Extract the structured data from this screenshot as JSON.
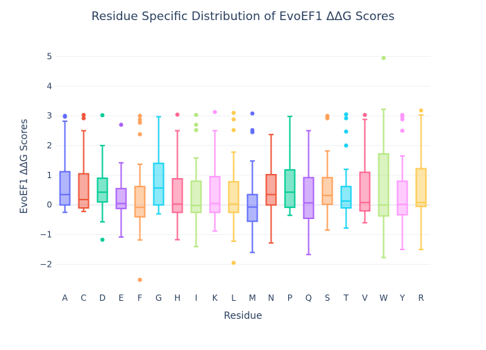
{
  "chart_data": {
    "type": "box",
    "title": "Residue Specific Distribution of EvoEF1 ΔΔG Scores",
    "xlabel": "Residue",
    "ylabel": "EvoEF1 ΔΔG Scores",
    "ylim": [
      -2.9,
      5.5
    ],
    "yticks": [
      -2,
      -1,
      0,
      1,
      2,
      3,
      4,
      5
    ],
    "ytick_labels": [
      "−2",
      "−1",
      "0",
      "1",
      "2",
      "3",
      "4",
      "5"
    ],
    "grid": true,
    "legend": "none",
    "series": [
      {
        "category": "A",
        "color": "#636efa",
        "min": -0.25,
        "q1": 0.0,
        "median": 0.35,
        "q3": 1.12,
        "max": 2.82,
        "outliers": [
          2.97,
          3.0
        ]
      },
      {
        "category": "C",
        "color": "#ef553b",
        "min": -0.22,
        "q1": -0.1,
        "median": 0.18,
        "q3": 1.05,
        "max": 2.5,
        "outliers": [
          2.92,
          3.03
        ]
      },
      {
        "category": "D",
        "color": "#00cc96",
        "min": -0.57,
        "q1": 0.1,
        "median": 0.43,
        "q3": 0.9,
        "max": 2.0,
        "outliers": [
          -1.17,
          3.02
        ]
      },
      {
        "category": "E",
        "color": "#ab63fa",
        "min": -1.08,
        "q1": -0.12,
        "median": 0.05,
        "q3": 0.55,
        "max": 1.42,
        "outliers": [
          2.7
        ]
      },
      {
        "category": "F",
        "color": "#ffa15a",
        "min": -1.18,
        "q1": -0.4,
        "median": -0.08,
        "q3": 0.62,
        "max": 1.37,
        "outliers": [
          -2.52,
          2.38,
          2.77,
          2.87,
          3.0
        ]
      },
      {
        "category": "G",
        "color": "#19d3f3",
        "min": -0.3,
        "q1": 0.0,
        "median": 0.57,
        "q3": 1.4,
        "max": 2.97,
        "outliers": []
      },
      {
        "category": "H",
        "color": "#ff6692",
        "min": -1.17,
        "q1": -0.25,
        "median": 0.03,
        "q3": 0.88,
        "max": 2.5,
        "outliers": [
          3.04
        ]
      },
      {
        "category": "I",
        "color": "#b6e880",
        "min": -1.4,
        "q1": -0.25,
        "median": -0.02,
        "q3": 0.8,
        "max": 1.58,
        "outliers": [
          2.52,
          2.7,
          3.03
        ]
      },
      {
        "category": "K",
        "color": "#ff97ff",
        "min": -0.88,
        "q1": -0.25,
        "median": 0.05,
        "q3": 0.95,
        "max": 2.5,
        "outliers": [
          3.13
        ]
      },
      {
        "category": "L",
        "color": "#fecb52",
        "min": -1.22,
        "q1": -0.25,
        "median": 0.03,
        "q3": 0.78,
        "max": 1.78,
        "outliers": [
          -1.95,
          2.52,
          2.88,
          3.1
        ]
      },
      {
        "category": "M",
        "color": "#636efa",
        "min": -1.6,
        "q1": -0.55,
        "median": -0.07,
        "q3": 0.35,
        "max": 1.48,
        "outliers": [
          2.45,
          2.52,
          3.08
        ]
      },
      {
        "category": "N",
        "color": "#ef553b",
        "min": -1.28,
        "q1": 0.0,
        "median": 0.35,
        "q3": 1.02,
        "max": 2.37,
        "outliers": []
      },
      {
        "category": "P",
        "color": "#00cc96",
        "min": -0.35,
        "q1": -0.08,
        "median": 0.43,
        "q3": 1.18,
        "max": 2.98,
        "outliers": []
      },
      {
        "category": "Q",
        "color": "#ab63fa",
        "min": -1.67,
        "q1": -0.45,
        "median": 0.07,
        "q3": 0.92,
        "max": 2.5,
        "outliers": []
      },
      {
        "category": "S",
        "color": "#ffa15a",
        "min": -0.85,
        "q1": 0.02,
        "median": 0.32,
        "q3": 0.92,
        "max": 1.82,
        "outliers": [
          2.92,
          2.97,
          3.0
        ]
      },
      {
        "category": "T",
        "color": "#19d3f3",
        "min": -0.78,
        "q1": -0.1,
        "median": 0.13,
        "q3": 0.62,
        "max": 1.2,
        "outliers": [
          2.0,
          2.47,
          2.92,
          3.05
        ]
      },
      {
        "category": "V",
        "color": "#ff6692",
        "min": -0.6,
        "q1": -0.2,
        "median": 0.08,
        "q3": 1.1,
        "max": 2.88,
        "outliers": [
          3.03
        ]
      },
      {
        "category": "W",
        "color": "#b6e880",
        "min": -1.77,
        "q1": -0.37,
        "median": 0.0,
        "q3": 1.72,
        "max": 3.22,
        "outliers": [
          4.95
        ]
      },
      {
        "category": "Y",
        "color": "#ff97ff",
        "min": -1.5,
        "q1": -0.33,
        "median": 0.02,
        "q3": 0.8,
        "max": 1.65,
        "outliers": [
          2.5,
          2.88,
          2.97,
          3.03
        ]
      },
      {
        "category": "R",
        "color": "#fecb52",
        "min": -1.5,
        "q1": -0.05,
        "median": 0.08,
        "q3": 1.22,
        "max": 3.03,
        "outliers": [
          3.18
        ]
      }
    ]
  }
}
